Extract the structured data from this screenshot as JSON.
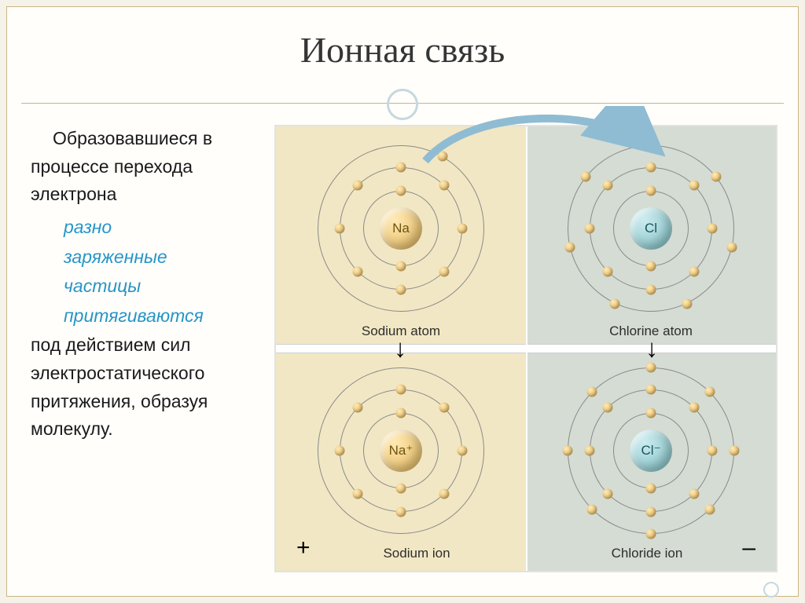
{
  "title": "Ионная связь",
  "text": {
    "t1": "Образовавшиеся в процессе перехода электрона",
    "em1": "разно",
    "em2": "заряженные",
    "em3": "частицы",
    "em4": "притягиваются",
    "t2": "под действием сил электростатического притяжения, образуя молекулу."
  },
  "atoms": {
    "na_atom": {
      "symbol": "Na",
      "label": "Sodium atom",
      "shells": [
        2,
        8,
        1
      ],
      "nucleus": "na"
    },
    "cl_atom": {
      "symbol": "Cl",
      "label": "Chlorine atom",
      "shells": [
        2,
        8,
        7
      ],
      "nucleus": "cl"
    },
    "na_ion": {
      "symbol": "Na⁺",
      "label": "Sodium ion",
      "shells": [
        2,
        8
      ],
      "nucleus": "na"
    },
    "cl_ion": {
      "symbol": "Cl⁻",
      "label": "Chloride ion",
      "shells": [
        2,
        8,
        8
      ],
      "nucleus": "cl"
    }
  },
  "styling": {
    "shell_radii": [
      48,
      78,
      106
    ],
    "electron_color": "#d9ab4f",
    "na_bg": "#f2e7c4",
    "cl_bg": "#d4dcd4",
    "nucleus_na": "#e3b659",
    "nucleus_cl": "#7cbfc3",
    "arrow_color": "#8fbcd3",
    "title_fontsize": 46,
    "body_fontsize": 23,
    "label_fontsize": 17,
    "em_color": "#2795c8"
  },
  "signs": {
    "na": "+",
    "cl": "–"
  }
}
